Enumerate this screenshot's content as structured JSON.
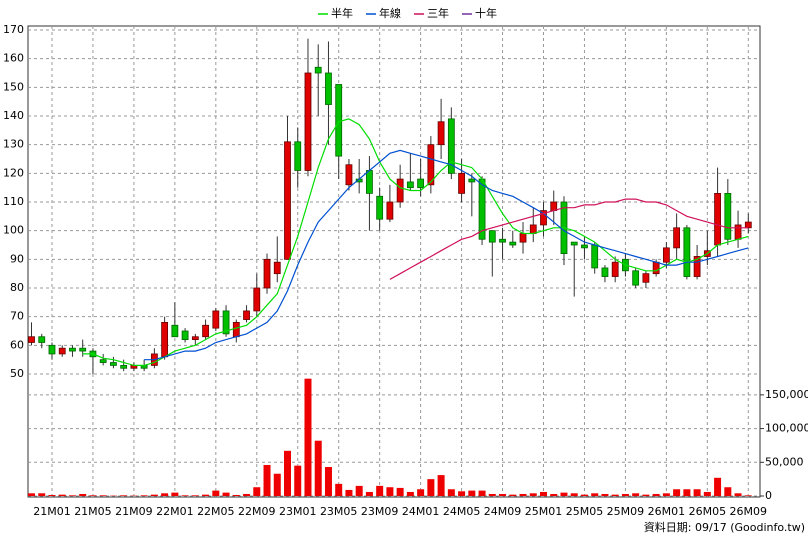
{
  "chart_data": {
    "type": "candlestick",
    "categories": [
      null,
      null,
      "21M01",
      null,
      null,
      null,
      "21M05",
      null,
      null,
      null,
      "21M09",
      null,
      null,
      null,
      "22M01",
      null,
      null,
      null,
      "22M05",
      null,
      null,
      null,
      "22M09",
      null,
      null,
      null,
      "23M01",
      null,
      null,
      null,
      "23M05",
      null,
      null,
      null,
      "23M09",
      null,
      null,
      null,
      "24M01",
      null,
      null,
      null,
      "24M05",
      null,
      null,
      null,
      "24M09",
      null,
      null,
      null,
      "25M01",
      null,
      null,
      null,
      "25M05",
      null,
      null,
      null,
      "25M09",
      null,
      null,
      null,
      "26M01",
      null,
      null,
      null,
      "26M05",
      null,
      null,
      null,
      "26M09"
    ],
    "open": [
      61,
      63,
      60,
      57,
      59,
      59,
      58,
      55,
      54,
      53,
      52,
      53,
      53,
      56,
      67,
      65,
      62,
      63,
      66,
      72,
      63,
      69,
      72,
      80,
      85,
      90,
      131,
      121,
      157,
      155,
      151,
      116,
      118,
      121,
      112,
      104,
      110,
      117,
      118,
      116,
      130,
      139,
      113,
      118,
      118,
      100,
      97,
      96,
      96,
      99,
      102,
      107,
      110,
      96,
      95,
      95,
      87,
      84,
      90,
      86,
      82,
      85,
      89,
      94,
      101,
      84,
      91,
      95,
      113,
      97,
      101
    ],
    "high": [
      68,
      64,
      61,
      60,
      60,
      62,
      59,
      57,
      56,
      55,
      54,
      55,
      59,
      70,
      75,
      66,
      64,
      69,
      73,
      74,
      69,
      74,
      85,
      92,
      98,
      140,
      136,
      167,
      165,
      166,
      151,
      125,
      125,
      126,
      115,
      116,
      123,
      127,
      125,
      133,
      146,
      143,
      125,
      120,
      119,
      100,
      101,
      100,
      103,
      108,
      110,
      114,
      112,
      96,
      98,
      96,
      88,
      91,
      92,
      87,
      86,
      90,
      96,
      106,
      102,
      95,
      100,
      122,
      118,
      107,
      106
    ],
    "low": [
      60,
      59,
      55,
      56,
      56,
      56,
      50,
      53,
      52,
      51,
      51,
      51,
      52,
      55,
      63,
      61,
      60,
      62,
      65,
      63,
      61,
      68,
      70,
      78,
      82,
      90,
      115,
      119,
      140,
      130,
      118,
      114,
      113,
      100,
      100,
      103,
      108,
      114,
      112,
      113,
      125,
      118,
      110,
      105,
      95,
      84,
      90,
      94,
      92,
      96,
      98,
      102,
      88,
      77,
      90,
      85,
      82,
      82,
      84,
      80,
      80,
      84,
      87,
      90,
      83,
      83,
      88,
      91,
      95,
      94,
      99
    ],
    "close": [
      63,
      61,
      57,
      59,
      58,
      58,
      56,
      54,
      53,
      52,
      53,
      52,
      57,
      68,
      63,
      62,
      63,
      67,
      72,
      64,
      68,
      72,
      80,
      90,
      89,
      131,
      121,
      155,
      155,
      144,
      126,
      123,
      117,
      113,
      104,
      110,
      118,
      115,
      115,
      130,
      138,
      120,
      120,
      117,
      97,
      96,
      96,
      95,
      99,
      102,
      107,
      110,
      92,
      95,
      94,
      87,
      84,
      89,
      86,
      81,
      85,
      89,
      94,
      101,
      84,
      91,
      93,
      113,
      97,
      102,
      103
    ],
    "up_color": "#e00000",
    "down_color": "#00c000",
    "ylim": [
      50,
      170
    ],
    "yticks": [
      50,
      60,
      70,
      80,
      90,
      100,
      110,
      120,
      130,
      140,
      150,
      160,
      170
    ],
    "volume": {
      "color": "#ee0000",
      "values": [
        4000,
        4000,
        1500,
        2000,
        1000,
        3000,
        1000,
        1000,
        500,
        1000,
        500,
        1000,
        2000,
        4000,
        5000,
        1000,
        1000,
        2000,
        8000,
        5000,
        1500,
        3000,
        13000,
        46000,
        33000,
        67000,
        45000,
        174000,
        82000,
        43000,
        18000,
        9000,
        15000,
        6000,
        15000,
        13000,
        12000,
        6000,
        10000,
        25000,
        31000,
        10000,
        7000,
        8000,
        8000,
        3000,
        3000,
        2000,
        3000,
        4000,
        6000,
        3000,
        5000,
        4000,
        2000,
        4000,
        3000,
        2000,
        3000,
        4000,
        2000,
        3000,
        4000,
        10000,
        10000,
        10000,
        6000,
        27000,
        13000,
        4000,
        1000
      ]
    },
    "y2lim": [
      0,
      175000
    ],
    "y2ticks": [
      0,
      {
        "value": 50000,
        "label": "50,000"
      },
      {
        "value": 100000,
        "label": "100,000"
      },
      {
        "value": 150000,
        "label": "150,000"
      }
    ],
    "grid": true,
    "series": [
      {
        "name": "半年",
        "color": "#00dd00",
        "values": [
          null,
          null,
          null,
          null,
          null,
          57,
          57,
          55.5,
          55,
          54,
          53,
          53,
          54,
          56,
          58,
          59,
          60,
          62,
          64,
          65,
          66,
          67,
          70,
          74,
          78,
          88,
          98,
          110,
          122,
          132,
          138,
          139,
          137,
          132,
          124,
          118,
          115,
          114,
          114,
          117,
          121,
          124,
          123,
          122,
          118,
          112,
          106,
          101,
          99,
          99,
          100,
          101,
          101,
          100,
          98,
          96,
          93,
          90,
          88,
          87,
          86,
          86,
          88,
          90,
          89,
          90,
          92,
          95,
          96,
          97,
          98
        ]
      },
      {
        "name": "年線",
        "color": "#0050d0",
        "values": [
          null,
          null,
          null,
          null,
          null,
          null,
          null,
          null,
          null,
          null,
          null,
          55,
          55,
          56,
          57,
          58,
          58,
          59,
          61,
          62,
          63,
          64,
          66,
          68,
          72,
          79,
          88,
          96,
          103,
          107,
          111,
          115,
          118,
          121,
          124,
          127,
          128,
          127,
          126,
          125,
          124,
          123,
          121,
          119,
          116,
          114,
          113,
          112,
          110,
          108,
          106,
          103,
          100,
          98,
          96,
          95,
          94,
          93,
          92,
          91,
          90,
          89,
          88,
          88,
          89,
          89,
          90,
          91,
          92,
          93,
          94
        ]
      },
      {
        "name": "三年",
        "color": "#d0105a",
        "values": [
          null,
          null,
          null,
          null,
          null,
          null,
          null,
          null,
          null,
          null,
          null,
          null,
          null,
          null,
          null,
          null,
          null,
          null,
          null,
          null,
          null,
          null,
          null,
          null,
          null,
          null,
          null,
          null,
          null,
          null,
          null,
          null,
          null,
          null,
          null,
          83,
          85,
          87,
          89,
          91,
          93,
          95,
          97,
          98,
          100,
          101,
          102,
          103,
          104,
          105,
          106,
          107,
          108,
          108,
          109,
          109,
          110,
          110,
          111,
          111,
          110,
          110,
          109,
          107,
          105,
          104,
          103,
          102,
          101,
          101,
          101
        ]
      },
      {
        "name": "十年",
        "color": "#7030a0",
        "values": [
          null,
          null,
          null,
          null,
          null,
          null,
          null,
          null,
          null,
          null,
          null,
          null,
          null,
          null,
          null,
          null,
          null,
          null,
          null,
          null,
          null,
          null,
          null,
          null,
          null,
          null,
          null,
          null,
          null,
          null,
          null,
          null,
          null,
          null,
          null,
          null,
          null,
          null,
          null,
          null,
          null,
          null,
          null,
          null,
          null,
          null,
          null,
          null,
          null,
          null,
          null,
          null,
          null,
          null,
          null,
          null,
          null,
          null,
          null,
          null,
          null,
          null,
          null,
          null,
          null,
          null,
          null,
          null,
          null,
          null,
          null
        ]
      }
    ],
    "note": "資料日期: 09/17 (Goodinfo.tw)"
  }
}
